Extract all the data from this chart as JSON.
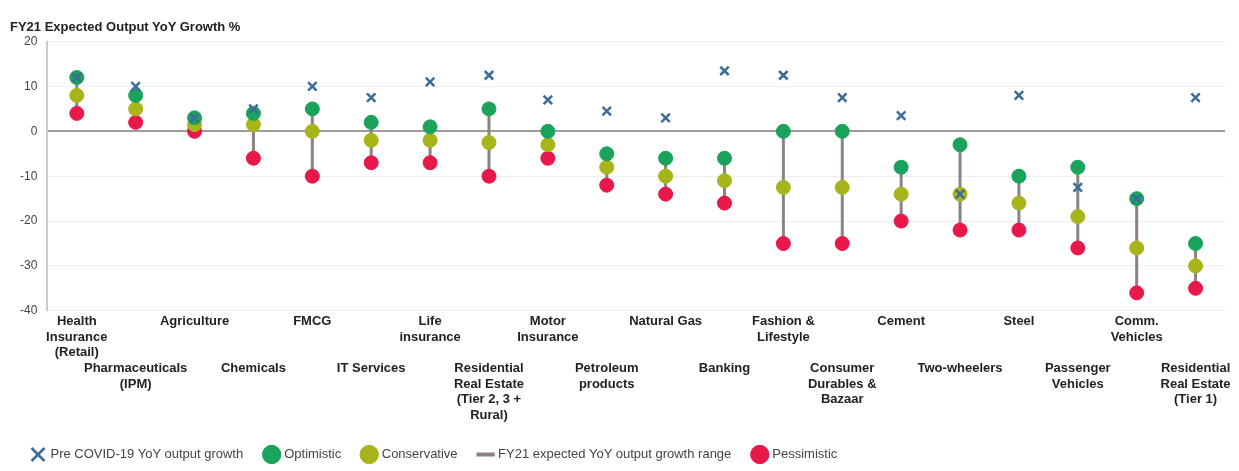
{
  "chart_data": {
    "type": "scatter",
    "title": "FY21 Expected Output YoY Growth %",
    "categories": [
      "Health Insurance (Retail)",
      "Pharmaceuticals (IPM)",
      "Agriculture",
      "Chemicals",
      "FMCG",
      "IT Services",
      "Life insurance",
      "Residential Real Estate (Tier 2, 3 + Rural)",
      "Motor Insurance",
      "Petroleum products",
      "Natural Gas",
      "Banking",
      "Fashion & Lifestyle",
      "Consumer Durables & Bazaar",
      "Cement",
      "Two-wheelers",
      "Steel",
      "Passenger Vehicles",
      "Comm. Vehicles",
      "Residential Real Estate (Tier 1)"
    ],
    "series": [
      {
        "name": "Optimistic",
        "marker": "circle",
        "color": "#1aa35a",
        "values": [
          12,
          8,
          3,
          4,
          5,
          2,
          1,
          5,
          0,
          -5,
          -6,
          -6,
          0,
          0,
          -8,
          -3,
          -10,
          -8,
          -15,
          -25
        ]
      },
      {
        "name": "Conservative",
        "marker": "circle",
        "color": "#a8b51a",
        "values": [
          8,
          5,
          1.5,
          1.5,
          0,
          -2,
          -2,
          -2.5,
          -3,
          -8,
          -10,
          -11,
          -12.5,
          -12.5,
          -14,
          -14,
          -16,
          -19,
          -26,
          -30
        ]
      },
      {
        "name": "Pessimistic",
        "marker": "circle",
        "color": "#e8194a",
        "values": [
          4,
          2,
          0,
          -6,
          -10,
          -7,
          -7,
          -10,
          -6,
          -12,
          -14,
          -16,
          -25,
          -25,
          -20,
          -22,
          -22,
          -26,
          -36,
          -35
        ]
      },
      {
        "name": "Pre COVID-19 YoY output growth",
        "marker": "cross",
        "color": "#3c6d9a",
        "values": [
          12,
          10,
          3,
          5,
          10,
          7.5,
          11,
          12.5,
          7,
          4.5,
          3,
          13.5,
          12.5,
          7.5,
          3.5,
          -14,
          8,
          -12.5,
          -15,
          7.5
        ]
      }
    ],
    "annotations": [
      "FY21 expected YoY output growth range"
    ],
    "ylim": [
      -40,
      20
    ],
    "yticks": [
      -40,
      -30,
      -20,
      -10,
      0,
      10,
      20
    ],
    "grid": "y",
    "legend": "bottom"
  }
}
